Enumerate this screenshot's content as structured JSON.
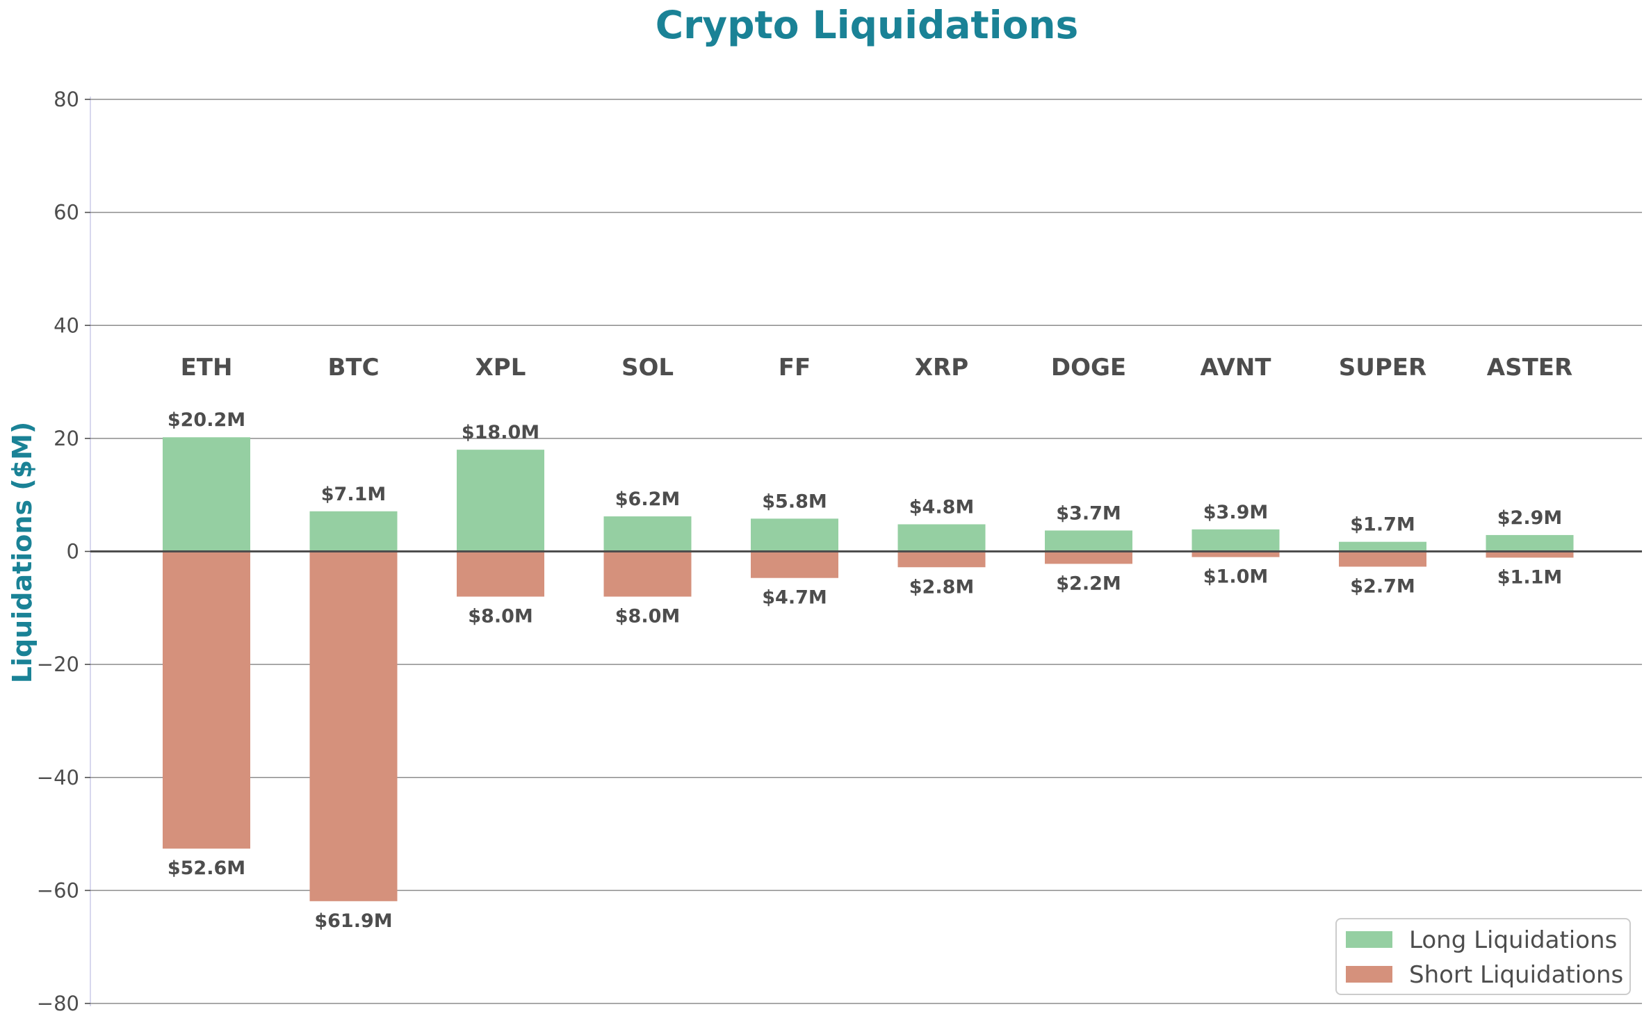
{
  "chart_data": {
    "type": "bar",
    "title": "Crypto Liquidations",
    "xlabel": "",
    "ylabel": "Liquidations ($M)",
    "ylim": [
      -80,
      80
    ],
    "yticks": [
      80,
      60,
      40,
      20,
      0,
      -20,
      -40,
      -60,
      -80
    ],
    "ytick_labels": [
      "80",
      "60",
      "40",
      "20",
      "0",
      "−20",
      "−40",
      "−60",
      "−80"
    ],
    "grid": true,
    "legend_position": "bottom-right",
    "categories": [
      "ETH",
      "BTC",
      "XPL",
      "SOL",
      "FF",
      "XRP",
      "DOGE",
      "AVNT",
      "SUPER",
      "ASTER"
    ],
    "series": [
      {
        "name": "Long Liquidations",
        "color": "#95cfa2",
        "values": [
          20.2,
          7.1,
          18.0,
          6.2,
          5.8,
          4.8,
          3.7,
          3.9,
          1.7,
          2.9
        ],
        "labels": [
          "$20.2M",
          "$7.1M",
          "$18.0M",
          "$6.2M",
          "$5.8M",
          "$4.8M",
          "$3.7M",
          "$3.9M",
          "$1.7M",
          "$2.9M"
        ]
      },
      {
        "name": "Short Liquidations",
        "color": "#d5917c",
        "values": [
          -52.6,
          -61.9,
          -8.0,
          -8.0,
          -4.7,
          -2.8,
          -2.2,
          -1.0,
          -2.7,
          -1.1
        ],
        "labels": [
          "$52.6M",
          "$61.9M",
          "$8.0M",
          "$8.0M",
          "$4.7M",
          "$2.8M",
          "$2.2M",
          "$1.0M",
          "$2.7M",
          "$1.1M"
        ]
      }
    ]
  }
}
